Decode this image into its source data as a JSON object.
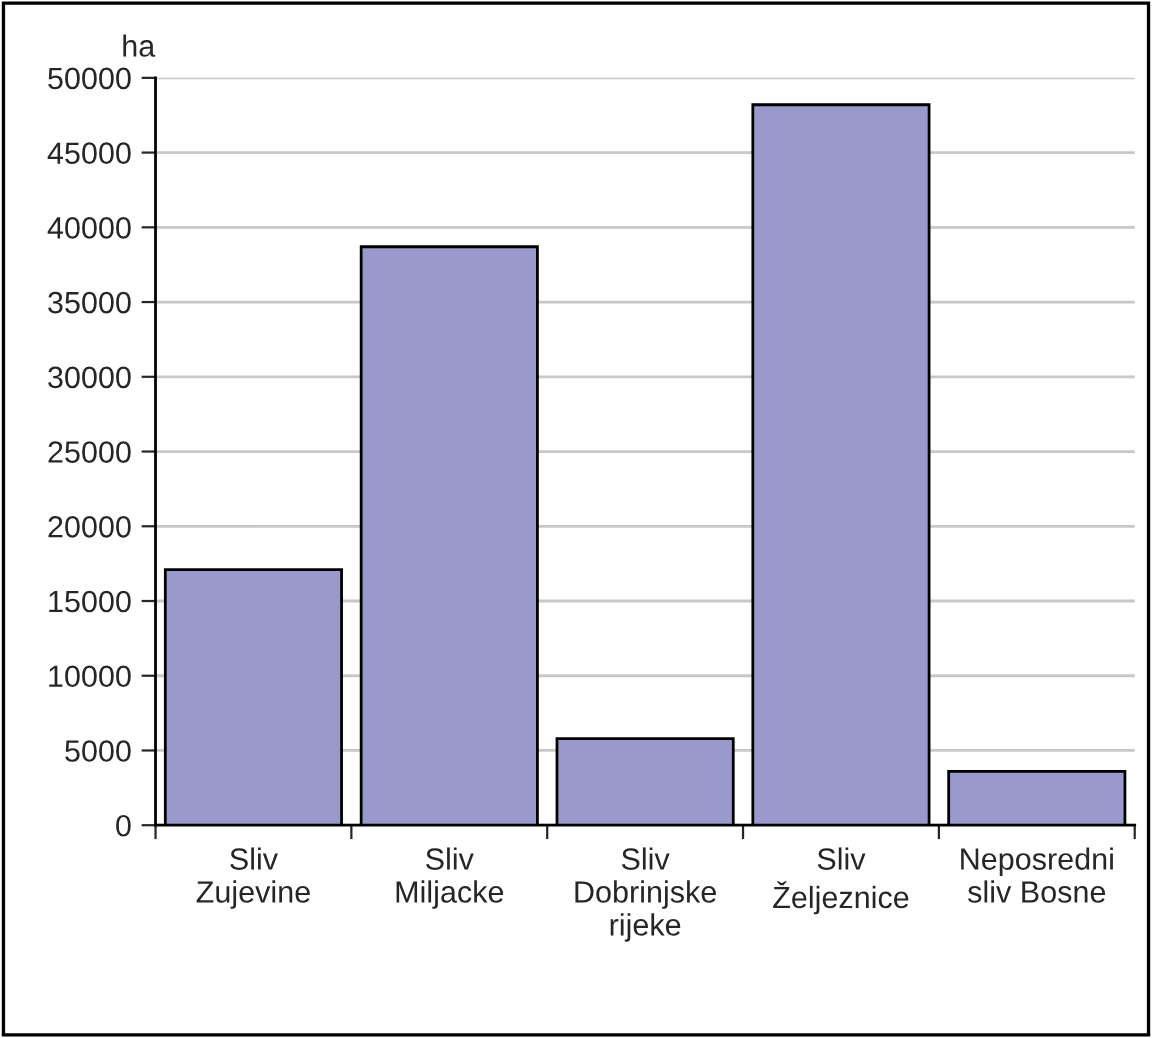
{
  "chart_data": {
    "type": "bar",
    "ylabel": "ha",
    "categories": [
      "Sliv\nZujevine",
      "Sliv\nMiljacke",
      "Sliv\nDobrinjske\nrijeke",
      "Sliv\nŽeljeznice",
      "Neposredni\nsliv Bosne"
    ],
    "values": [
      17100,
      38700,
      5800,
      48200,
      3600
    ],
    "color": "#9999cc",
    "ylim": [
      0,
      50000
    ],
    "yticks": [
      0,
      5000,
      10000,
      15000,
      20000,
      25000,
      30000,
      35000,
      40000,
      45000,
      50000
    ],
    "grid": "y",
    "legend": false
  }
}
